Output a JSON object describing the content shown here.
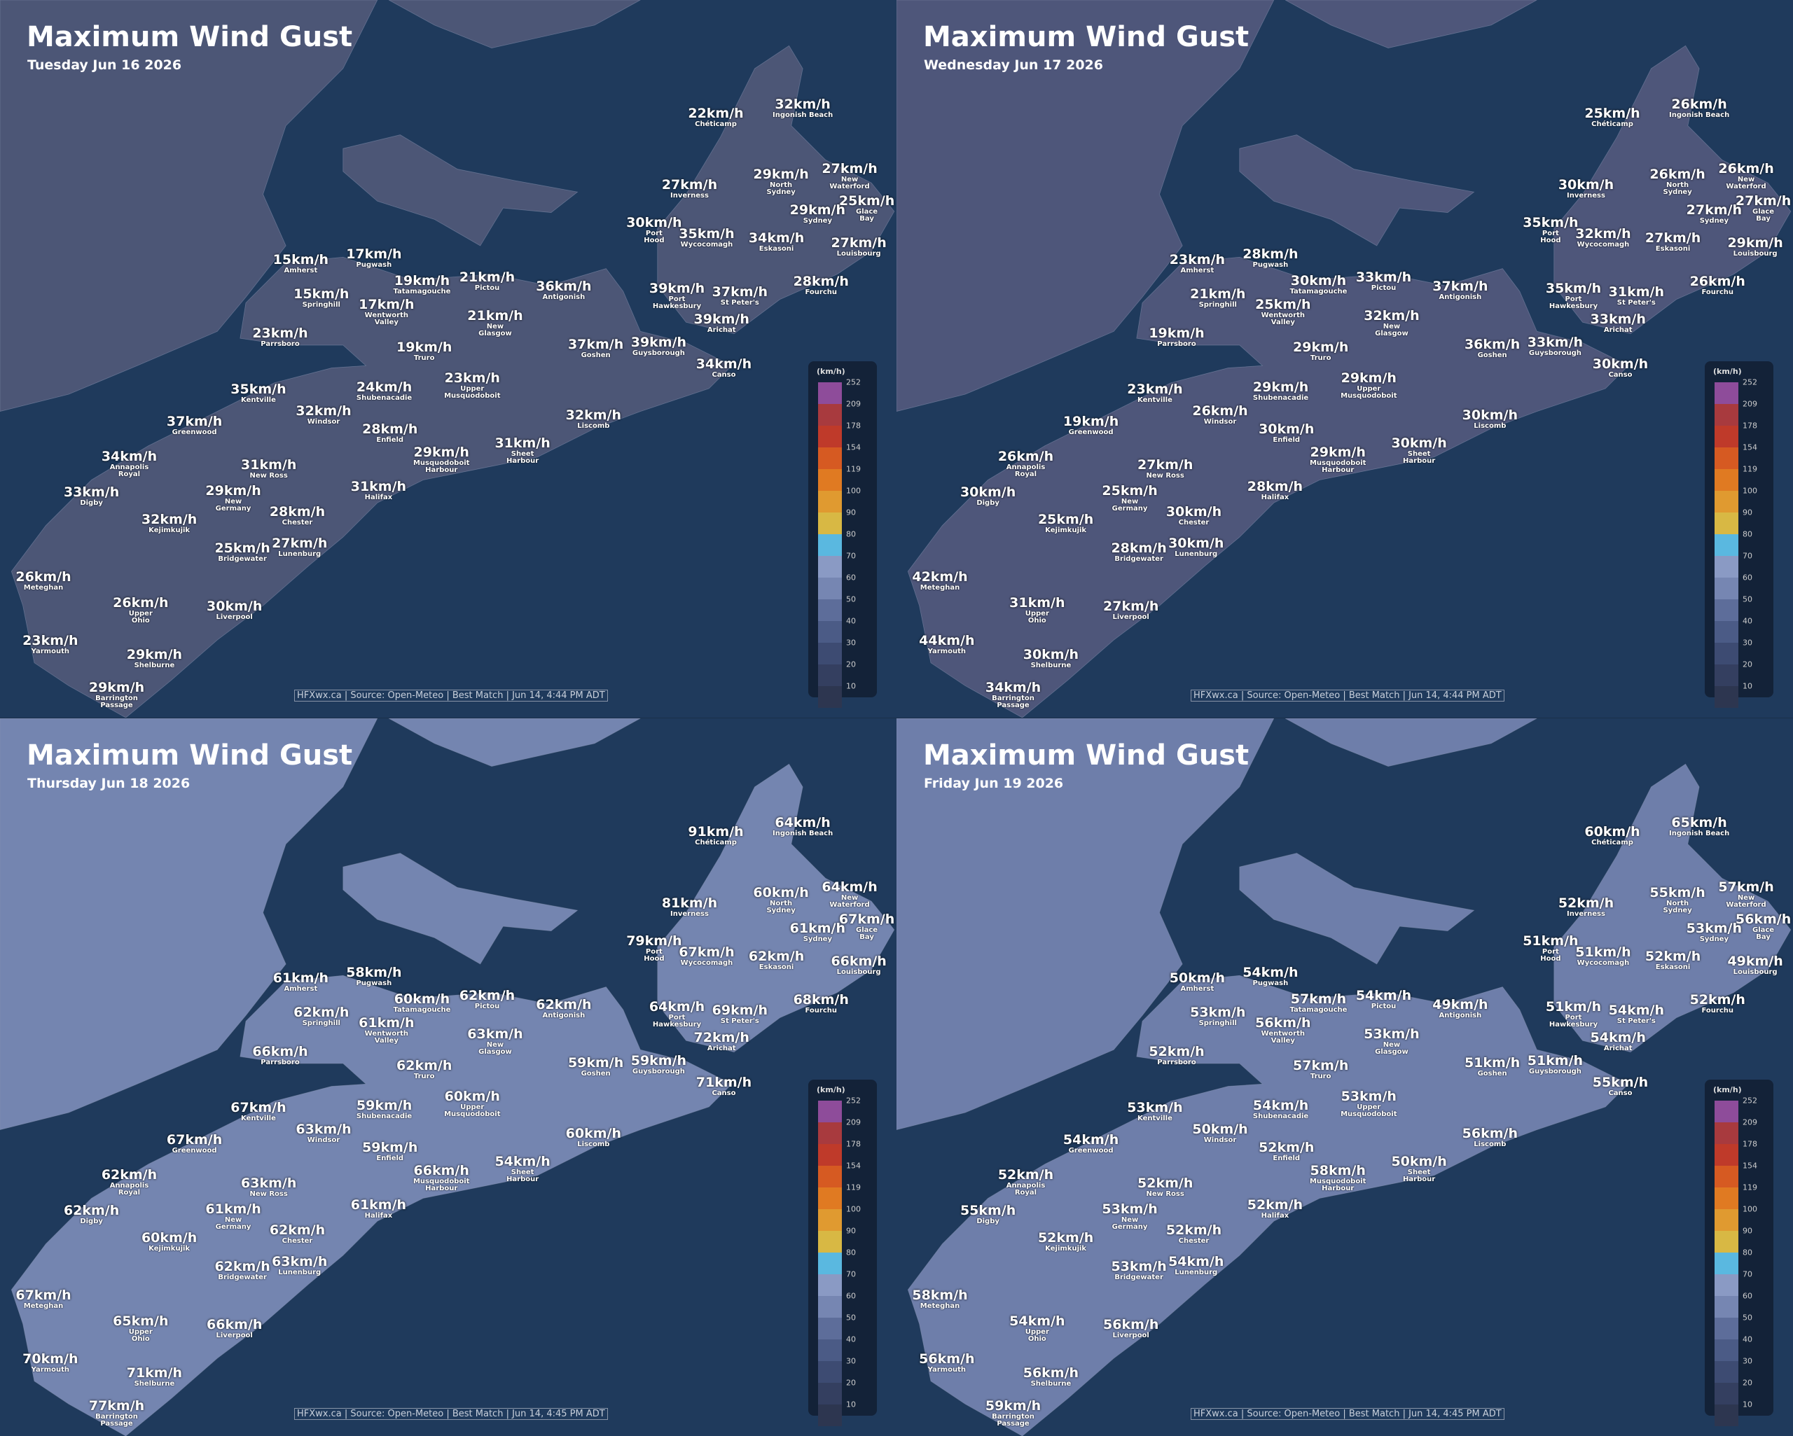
{
  "places": [
    "Chéticamp",
    "Ingonish Beach",
    "Inverness",
    "North Sydney",
    "New Waterford",
    "Glace Bay",
    "Sydney",
    "Port Hood",
    "Wycocomagh",
    "Eskasoni",
    "Louisbourg",
    "Amherst",
    "Pugwash",
    "Tatamagouche",
    "Pictou",
    "Antigonish",
    "Springhill",
    "Wentworth Valley",
    "New Glasgow",
    "Port Hawkesbury",
    "St Peter's",
    "Fourchu",
    "Arichat",
    "Parrsboro",
    "Truro",
    "Goshen",
    "Guysborough",
    "Canso",
    "Kentville",
    "Shubenacadie",
    "Upper Musquodoboit",
    "Windsor",
    "Liscomb",
    "Greenwood",
    "Enfield",
    "Musquodoboit Harbour",
    "Sheet Harbour",
    "Annapolis Royal",
    "New Ross",
    "Halifax",
    "Digby",
    "New Germany",
    "Kejimkujik",
    "Chester",
    "Bridgewater",
    "Lunenburg",
    "Meteghan",
    "Upper Ohio",
    "Liverpool",
    "Yarmouth",
    "Shelburne",
    "Barrington Passage"
  ],
  "legend": {
    "title": "(km/h)",
    "items": [
      {
        "label": "252",
        "color": "#8e4c9a"
      },
      {
        "label": "209",
        "color": "#a83a3e"
      },
      {
        "label": "178",
        "color": "#bf3a2a"
      },
      {
        "label": "154",
        "color": "#d65a22"
      },
      {
        "label": "119",
        "color": "#e07a22"
      },
      {
        "label": "100",
        "color": "#e09a30"
      },
      {
        "label": "90",
        "color": "#d8b844"
      },
      {
        "label": "80",
        "color": "#5ab8e0"
      },
      {
        "label": "70",
        "color": "#8a9ac4"
      },
      {
        "label": "60",
        "color": "#7686b2"
      },
      {
        "label": "50",
        "color": "#5d6d9a"
      },
      {
        "label": "40",
        "color": "#4b5b86"
      },
      {
        "label": "30",
        "color": "#3d4b72"
      },
      {
        "label": "20",
        "color": "#343f60"
      },
      {
        "label": "10",
        "color": "#2d3650"
      }
    ]
  },
  "panels": [
    {
      "title": "Maximum Wind Gust",
      "date": "Tuesday Jun 16 2026",
      "footer": "HFXwx.ca | Source: Open-Meteo | Best Match | Jun 14, 4:44 PM ADT",
      "land_color": "#4c5676",
      "speeds": [
        "22km/h",
        "32km/h",
        "27km/h",
        "29km/h",
        "27km/h",
        "25km/h",
        "29km/h",
        "30km/h",
        "35km/h",
        "34km/h",
        "27km/h",
        "15km/h",
        "17km/h",
        "19km/h",
        "21km/h",
        "36km/h",
        "15km/h",
        "17km/h",
        "21km/h",
        "39km/h",
        "37km/h",
        "28km/h",
        "39km/h",
        "23km/h",
        "19km/h",
        "37km/h",
        "39km/h",
        "34km/h",
        "35km/h",
        "24km/h",
        "23km/h",
        "32km/h",
        "32km/h",
        "37km/h",
        "28km/h",
        "29km/h",
        "31km/h",
        "34km/h",
        "31km/h",
        "31km/h",
        "33km/h",
        "29km/h",
        "32km/h",
        "28km/h",
        "25km/h",
        "27km/h",
        "26km/h",
        "26km/h",
        "30km/h",
        "23km/h",
        "29km/h",
        "29km/h"
      ]
    },
    {
      "title": "Maximum Wind Gust",
      "date": "Wednesday Jun 17 2026",
      "footer": "HFXwx.ca | Source: Open-Meteo | Best Match | Jun 14, 4:44 PM ADT",
      "land_color": "#4e567a",
      "speeds": [
        "25km/h",
        "26km/h",
        "30km/h",
        "26km/h",
        "26km/h",
        "27km/h",
        "27km/h",
        "35km/h",
        "32km/h",
        "27km/h",
        "29km/h",
        "23km/h",
        "28km/h",
        "30km/h",
        "33km/h",
        "37km/h",
        "21km/h",
        "25km/h",
        "32km/h",
        "35km/h",
        "31km/h",
        "26km/h",
        "33km/h",
        "19km/h",
        "29km/h",
        "36km/h",
        "33km/h",
        "30km/h",
        "23km/h",
        "29km/h",
        "29km/h",
        "26km/h",
        "30km/h",
        "19km/h",
        "30km/h",
        "29km/h",
        "30km/h",
        "26km/h",
        "27km/h",
        "28km/h",
        "30km/h",
        "25km/h",
        "25km/h",
        "30km/h",
        "28km/h",
        "30km/h",
        "42km/h",
        "31km/h",
        "27km/h",
        "44km/h",
        "30km/h",
        "34km/h"
      ]
    },
    {
      "title": "Maximum Wind Gust",
      "date": "Thursday Jun 18 2026",
      "footer": "HFXwx.ca | Source: Open-Meteo | Best Match | Jun 14, 4:45 PM ADT",
      "land_color": "#7485b0",
      "speeds": [
        "91km/h",
        "64km/h",
        "81km/h",
        "60km/h",
        "64km/h",
        "67km/h",
        "61km/h",
        "79km/h",
        "67km/h",
        "62km/h",
        "66km/h",
        "61km/h",
        "58km/h",
        "60km/h",
        "62km/h",
        "62km/h",
        "62km/h",
        "61km/h",
        "63km/h",
        "64km/h",
        "69km/h",
        "68km/h",
        "72km/h",
        "66km/h",
        "62km/h",
        "59km/h",
        "59km/h",
        "71km/h",
        "67km/h",
        "59km/h",
        "60km/h",
        "63km/h",
        "60km/h",
        "67km/h",
        "59km/h",
        "66km/h",
        "54km/h",
        "62km/h",
        "63km/h",
        "61km/h",
        "62km/h",
        "61km/h",
        "60km/h",
        "62km/h",
        "62km/h",
        "63km/h",
        "67km/h",
        "65km/h",
        "66km/h",
        "70km/h",
        "71km/h",
        "77km/h"
      ]
    },
    {
      "title": "Maximum Wind Gust",
      "date": "Friday Jun 19 2026",
      "footer": "HFXwx.ca | Source: Open-Meteo | Best Match | Jun 14, 4:45 PM ADT",
      "land_color": "#6e7eaa",
      "speeds": [
        "60km/h",
        "65km/h",
        "52km/h",
        "55km/h",
        "57km/h",
        "56km/h",
        "53km/h",
        "51km/h",
        "51km/h",
        "52km/h",
        "49km/h",
        "50km/h",
        "54km/h",
        "57km/h",
        "54km/h",
        "49km/h",
        "53km/h",
        "56km/h",
        "53km/h",
        "51km/h",
        "54km/h",
        "52km/h",
        "54km/h",
        "52km/h",
        "57km/h",
        "51km/h",
        "51km/h",
        "55km/h",
        "53km/h",
        "54km/h",
        "53km/h",
        "50km/h",
        "56km/h",
        "54km/h",
        "52km/h",
        "58km/h",
        "50km/h",
        "52km/h",
        "52km/h",
        "52km/h",
        "55km/h",
        "53km/h",
        "52km/h",
        "52km/h",
        "53km/h",
        "54km/h",
        "58km/h",
        "54km/h",
        "56km/h",
        "56km/h",
        "56km/h",
        "59km/h"
      ]
    }
  ]
}
